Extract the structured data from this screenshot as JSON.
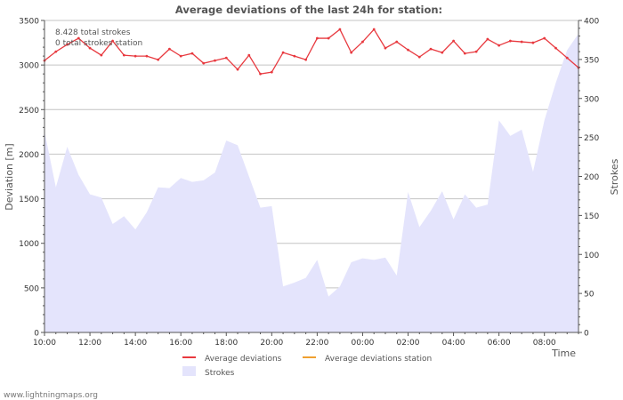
{
  "chart_data": {
    "type": "line",
    "title": "Average deviations of the last 24h for station:",
    "xlabel": "Time",
    "ylabel": "Deviation  [m]",
    "y2label": "Strokes",
    "ylim": [
      0,
      3500
    ],
    "y2lim": [
      0,
      400
    ],
    "yticks": [
      0,
      500,
      1000,
      1500,
      2000,
      2500,
      3000,
      3500
    ],
    "y2ticks": [
      0,
      50,
      100,
      150,
      200,
      250,
      300,
      350,
      400
    ],
    "xticks": [
      "10:00",
      "12:00",
      "14:00",
      "16:00",
      "18:00",
      "20:00",
      "22:00",
      "00:00",
      "02:00",
      "04:00",
      "06:00",
      "08:00"
    ],
    "x_start_hour": 10,
    "x_span_hours": 23.5,
    "info_lines": [
      "8.428 total strokes",
      "0 total strokes station"
    ],
    "series": [
      {
        "name": "Average deviations",
        "axis": "left",
        "color": "#e8393f",
        "x": [
          10.0,
          10.5,
          11.0,
          11.5,
          12.0,
          12.5,
          13.0,
          13.5,
          14.0,
          14.5,
          15.0,
          15.5,
          16.0,
          16.5,
          17.0,
          17.5,
          18.0,
          18.5,
          19.0,
          19.5,
          20.0,
          20.5,
          21.0,
          21.5,
          22.0,
          22.5,
          23.0,
          23.5,
          24.0,
          24.5,
          25.0,
          25.5,
          26.0,
          26.5,
          27.0,
          27.5,
          28.0,
          28.5,
          29.0,
          29.5,
          30.0,
          30.5,
          31.0,
          31.5,
          32.0,
          32.5,
          33.0,
          33.5
        ],
        "values": [
          3050,
          3150,
          3230,
          3300,
          3190,
          3110,
          3270,
          3110,
          3100,
          3100,
          3060,
          3180,
          3100,
          3130,
          3020,
          3050,
          3080,
          2950,
          3110,
          2900,
          2920,
          3140,
          3100,
          3060,
          3300,
          3300,
          3400,
          3140,
          3260,
          3400,
          3190,
          3260,
          3170,
          3090,
          3180,
          3140,
          3270,
          3130,
          3150,
          3290,
          3220,
          3270,
          3260,
          3250,
          3300,
          3190,
          3080,
          2970
        ]
      },
      {
        "name": "Average deviations station",
        "axis": "left",
        "color": "#f0a030",
        "x": [],
        "values": []
      },
      {
        "name": "Strokes",
        "axis": "right",
        "kind": "area",
        "color": "#e4e4fc",
        "x": [
          10.0,
          10.5,
          11.0,
          11.5,
          12.0,
          12.5,
          13.0,
          13.5,
          14.0,
          14.5,
          15.0,
          15.5,
          16.0,
          16.5,
          17.0,
          17.5,
          18.0,
          18.5,
          19.0,
          19.5,
          20.0,
          20.5,
          21.0,
          21.5,
          22.0,
          22.5,
          23.0,
          23.5,
          24.0,
          24.5,
          25.0,
          25.5,
          26.0,
          26.5,
          27.0,
          27.5,
          28.0,
          28.5,
          29.0,
          29.5,
          30.0,
          30.5,
          31.0,
          31.5,
          32.0,
          32.5,
          33.0,
          33.5
        ],
        "values": [
          258,
          186,
          238,
          202,
          177,
          173,
          139,
          149,
          132,
          154,
          186,
          185,
          198,
          193,
          195,
          205,
          246,
          240,
          200,
          160,
          162,
          59,
          64,
          70,
          93,
          46,
          59,
          90,
          95,
          93,
          96,
          73,
          180,
          135,
          156,
          181,
          145,
          177,
          160,
          164,
          272,
          252,
          260,
          206,
          272,
          320,
          362,
          383
        ]
      }
    ]
  },
  "footer": {
    "attribution": "www.lightningmaps.org"
  }
}
